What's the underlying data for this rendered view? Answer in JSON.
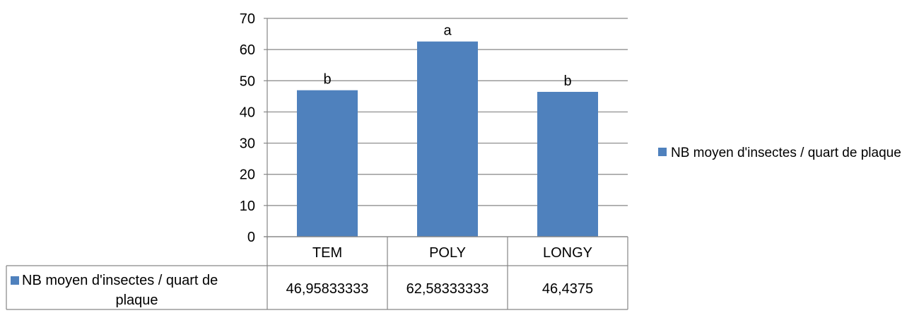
{
  "chart_data": {
    "type": "bar",
    "title": "",
    "xlabel": "",
    "ylabel": "",
    "categories": [
      "TEM",
      "POLY",
      "LONGY"
    ],
    "series": [
      {
        "name": "NB moyen d'insectes / quart de plaque",
        "values": [
          46.95833333,
          62.58333333,
          46.4375
        ],
        "color": "#4F81BD"
      }
    ],
    "significance_letters": [
      "b",
      "a",
      "b"
    ],
    "data_table": {
      "row_label": "NB moyen d'insectes / quart de plaque",
      "cells": [
        "46,95833333",
        "62,58333333",
        "46,4375"
      ]
    },
    "yticks": [
      "0",
      "10",
      "20",
      "30",
      "40",
      "50",
      "60",
      "70"
    ],
    "ylim": [
      0,
      70
    ],
    "grid": true,
    "legend_position": "right"
  },
  "legend": {
    "label": "NB moyen d'insectes / quart de plaque"
  }
}
